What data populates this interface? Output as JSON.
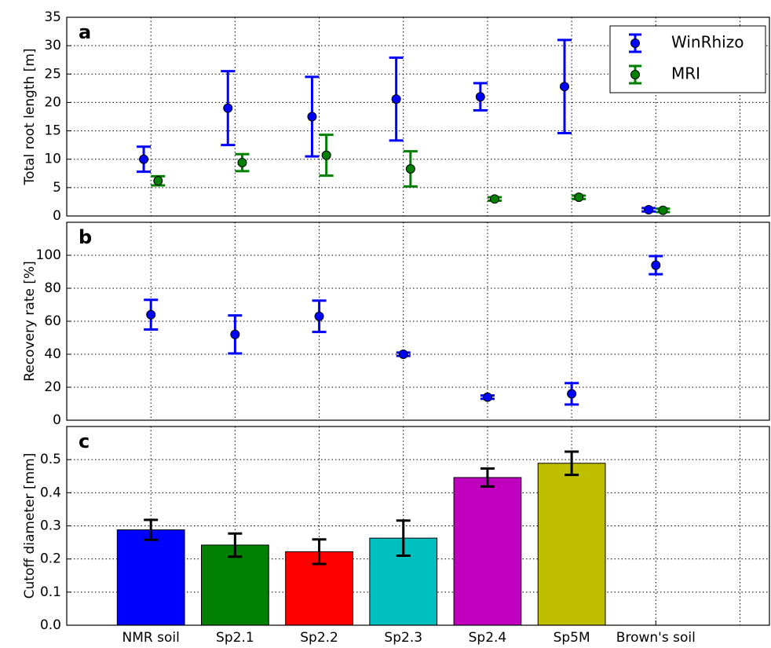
{
  "chart_data": [
    {
      "type": "errorbar",
      "label": "a",
      "ylabel": "Total root length [m]",
      "ylim": [
        0,
        35
      ],
      "yticks": [
        0,
        5,
        10,
        15,
        20,
        25,
        30,
        35
      ],
      "xlim": [
        -1,
        7.35
      ],
      "grid": true,
      "legend": "upper right",
      "series": [
        {
          "name": "WinRhizo",
          "color": "#0000ff",
          "values": [
            10,
            19,
            17.5,
            20.6,
            21,
            22.8,
            1.1,
            null
          ],
          "errors": [
            2.2,
            6.5,
            7,
            7.3,
            2.4,
            8.2,
            0.3,
            null
          ]
        },
        {
          "name": "MRI",
          "color": "#008000",
          "values": [
            6.2,
            9.4,
            10.7,
            8.3,
            3,
            3.3,
            1,
            null
          ],
          "errors": [
            0.8,
            1.5,
            3.6,
            3.1,
            0.3,
            0.3,
            0.3,
            null
          ]
        }
      ]
    },
    {
      "type": "errorbar",
      "label": "b",
      "ylabel": "Recovery rate [%]",
      "ylim": [
        0,
        120
      ],
      "yticks": [
        0,
        20,
        40,
        60,
        80,
        100
      ],
      "xlim": [
        -1,
        7.35
      ],
      "grid": true,
      "series": [
        {
          "color": "#0000ff",
          "values": [
            64,
            52,
            63,
            40,
            14,
            16,
            94,
            null
          ],
          "errors": [
            9,
            11.5,
            9.5,
            1,
            1,
            6.5,
            5.5,
            null
          ]
        }
      ]
    },
    {
      "type": "bar",
      "label": "c",
      "ylabel": "Cutoff diameter [mm]",
      "ylim": [
        0,
        0.6
      ],
      "yticks": [
        {
          "value": 0,
          "label": "0.0"
        },
        0.1,
        0.2,
        0.3,
        0.4,
        0.5
      ],
      "xlim": [
        -1,
        7.35
      ],
      "grid": true,
      "categories": [
        "NMR soil",
        "Sp2.1",
        "Sp2.2",
        "Sp2.3",
        "Sp2.4",
        "Sp5M",
        "Brown's soil",
        null
      ],
      "values": [
        0.288,
        0.242,
        0.222,
        0.263,
        0.446,
        0.489,
        null,
        null
      ],
      "errors": [
        0.03,
        0.035,
        0.037,
        0.053,
        0.027,
        0.035,
        null,
        null
      ],
      "colors": [
        "#0000ff",
        "#008000",
        "#ff0000",
        "#00bfbf",
        "#bf00bf",
        "#bfbf00",
        null,
        null
      ]
    }
  ]
}
